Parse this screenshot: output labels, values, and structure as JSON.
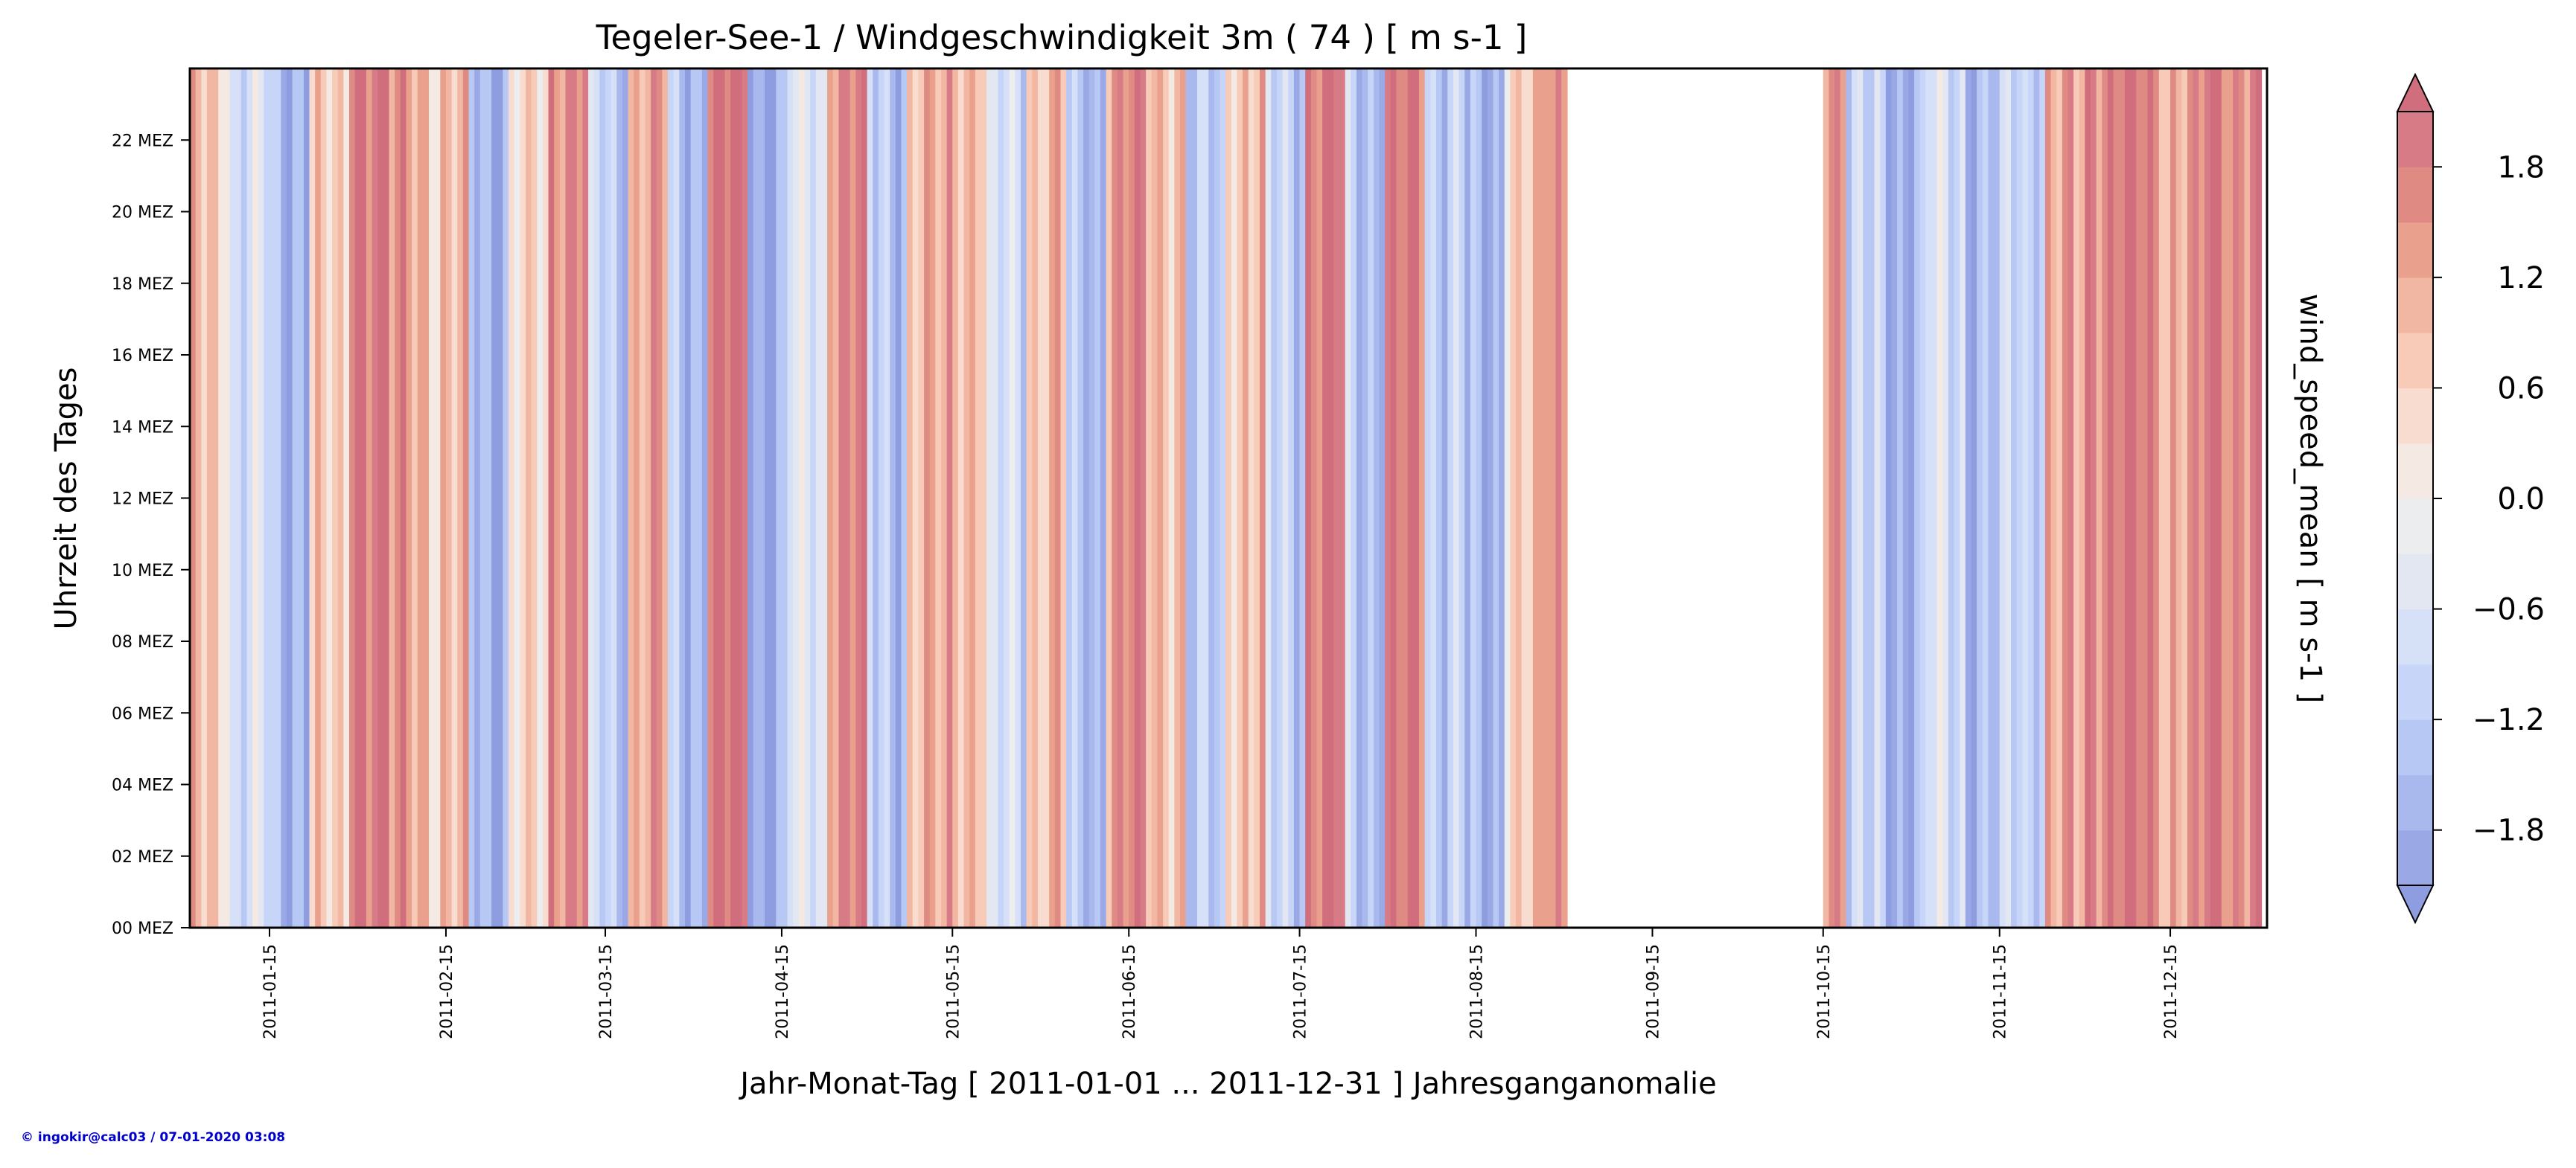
{
  "chart_data": {
    "type": "heatmap",
    "title": "Tegeler-See-1 / Windgeschwindigkeit 3m ( 74 ) [ m s-1 ]",
    "xlabel": "Jahr-Monat-Tag [ 2011-01-01 ... 2011-12-31 ] Jahresganganomalie",
    "ylabel": "Uhrzeit des Tages",
    "colorbar_label": "wind_speed_mean [ m s-1 ]",
    "xlim": [
      "2011-01-01",
      "2011-12-31"
    ],
    "ylim": [
      0,
      24
    ],
    "x_ticks": [
      "2011-01-15",
      "2011-02-15",
      "2011-03-15",
      "2011-04-15",
      "2011-05-15",
      "2011-06-15",
      "2011-07-15",
      "2011-08-15",
      "2011-09-15",
      "2011-10-15",
      "2011-11-15",
      "2011-12-15"
    ],
    "y_ticks": [
      {
        "hour": 0,
        "label": "00 MEZ"
      },
      {
        "hour": 2,
        "label": "02 MEZ"
      },
      {
        "hour": 4,
        "label": "04 MEZ"
      },
      {
        "hour": 6,
        "label": "06 MEZ"
      },
      {
        "hour": 8,
        "label": "08 MEZ"
      },
      {
        "hour": 10,
        "label": "10 MEZ"
      },
      {
        "hour": 12,
        "label": "12 MEZ"
      },
      {
        "hour": 14,
        "label": "14 MEZ"
      },
      {
        "hour": 16,
        "label": "16 MEZ"
      },
      {
        "hour": 18,
        "label": "18 MEZ"
      },
      {
        "hour": 20,
        "label": "20 MEZ"
      },
      {
        "hour": 22,
        "label": "22 MEZ"
      }
    ],
    "colorbar": {
      "range": [
        -2.1,
        2.1
      ],
      "levels": [
        -2.1,
        -1.8,
        -1.5,
        -1.2,
        -0.9,
        -0.6,
        -0.3,
        0.0,
        0.3,
        0.6,
        0.9,
        1.2,
        1.5,
        1.8,
        2.1
      ],
      "colors": [
        "#9aa9e6",
        "#a9b9ee",
        "#b8c8f4",
        "#c7d6f8",
        "#d6e1f8",
        "#e2e7f2",
        "#ecedef",
        "#f4e9e3",
        "#f8dccf",
        "#f7cbb8",
        "#f2b7a2",
        "#e9a08c",
        "#df8a83",
        "#d77b86"
      ],
      "under_color": "#8e9de0",
      "over_color": "#d06e7e",
      "ticks": [
        {
          "value": -1.8,
          "label": "−1.8"
        },
        {
          "value": -1.2,
          "label": "−1.2"
        },
        {
          "value": -0.6,
          "label": "−0.6"
        },
        {
          "value": 0.0,
          "label": "0.0"
        },
        {
          "value": 0.6,
          "label": "0.6"
        },
        {
          "value": 1.2,
          "label": "1.2"
        },
        {
          "value": 1.8,
          "label": "1.8"
        }
      ]
    },
    "missing_ranges": [
      [
        "2011-08-31",
        "2011-10-15"
      ]
    ],
    "daily_anomaly_profile": [
      {
        "start": "2011-01-01",
        "end": "2011-01-08",
        "value": 0.9
      },
      {
        "start": "2011-01-08",
        "end": "2011-01-15",
        "value": -0.8
      },
      {
        "start": "2011-01-15",
        "end": "2011-01-22",
        "value": -1.5
      },
      {
        "start": "2011-01-22",
        "end": "2011-01-29",
        "value": 0.5
      },
      {
        "start": "2011-01-29",
        "end": "2011-02-05",
        "value": 2.2
      },
      {
        "start": "2011-02-05",
        "end": "2011-02-12",
        "value": 1.4
      },
      {
        "start": "2011-02-12",
        "end": "2011-02-19",
        "value": 0.8
      },
      {
        "start": "2011-02-19",
        "end": "2011-02-26",
        "value": -1.6
      },
      {
        "start": "2011-02-26",
        "end": "2011-03-05",
        "value": 0.3
      },
      {
        "start": "2011-03-05",
        "end": "2011-03-12",
        "value": 1.9
      },
      {
        "start": "2011-03-12",
        "end": "2011-03-19",
        "value": -1.2
      },
      {
        "start": "2011-03-19",
        "end": "2011-03-26",
        "value": 1.2
      },
      {
        "start": "2011-03-26",
        "end": "2011-04-02",
        "value": -1.4
      },
      {
        "start": "2011-04-02",
        "end": "2011-04-09",
        "value": 2.0
      },
      {
        "start": "2011-04-09",
        "end": "2011-04-16",
        "value": -1.7
      },
      {
        "start": "2011-04-16",
        "end": "2011-04-23",
        "value": -0.6
      },
      {
        "start": "2011-04-23",
        "end": "2011-04-30",
        "value": 1.8
      },
      {
        "start": "2011-04-30",
        "end": "2011-05-07",
        "value": -1.3
      },
      {
        "start": "2011-05-07",
        "end": "2011-05-14",
        "value": 0.9
      },
      {
        "start": "2011-05-14",
        "end": "2011-05-21",
        "value": 1.3
      },
      {
        "start": "2011-05-21",
        "end": "2011-05-28",
        "value": -0.9
      },
      {
        "start": "2011-05-28",
        "end": "2011-06-04",
        "value": 1.0
      },
      {
        "start": "2011-06-04",
        "end": "2011-06-11",
        "value": -1.5
      },
      {
        "start": "2011-06-11",
        "end": "2011-06-18",
        "value": 1.6
      },
      {
        "start": "2011-06-18",
        "end": "2011-06-25",
        "value": 1.1
      },
      {
        "start": "2011-06-25",
        "end": "2011-07-02",
        "value": -1.4
      },
      {
        "start": "2011-07-02",
        "end": "2011-07-09",
        "value": 1.0
      },
      {
        "start": "2011-07-09",
        "end": "2011-07-16",
        "value": -1.1
      },
      {
        "start": "2011-07-16",
        "end": "2011-07-23",
        "value": 2.0
      },
      {
        "start": "2011-07-23",
        "end": "2011-07-30",
        "value": -1.3
      },
      {
        "start": "2011-07-30",
        "end": "2011-08-06",
        "value": 1.7
      },
      {
        "start": "2011-08-06",
        "end": "2011-08-13",
        "value": -1.0
      },
      {
        "start": "2011-08-13",
        "end": "2011-08-20",
        "value": -1.8
      },
      {
        "start": "2011-08-20",
        "end": "2011-08-27",
        "value": 0.8
      },
      {
        "start": "2011-08-27",
        "end": "2011-08-31",
        "value": 1.5
      },
      {
        "start": "2011-10-15",
        "end": "2011-10-19",
        "value": 1.8
      },
      {
        "start": "2011-10-19",
        "end": "2011-10-26",
        "value": -1.2
      },
      {
        "start": "2011-10-26",
        "end": "2011-11-02",
        "value": -1.6
      },
      {
        "start": "2011-11-02",
        "end": "2011-11-09",
        "value": -0.7
      },
      {
        "start": "2011-11-09",
        "end": "2011-11-16",
        "value": -1.5
      },
      {
        "start": "2011-11-16",
        "end": "2011-11-23",
        "value": -0.9
      },
      {
        "start": "2011-11-23",
        "end": "2011-11-30",
        "value": 1.1
      },
      {
        "start": "2011-11-30",
        "end": "2011-12-07",
        "value": 2.0
      },
      {
        "start": "2011-12-07",
        "end": "2011-12-14",
        "value": 1.7
      },
      {
        "start": "2011-12-14",
        "end": "2011-12-21",
        "value": 1.3
      },
      {
        "start": "2011-12-21",
        "end": "2011-12-31",
        "value": 1.9
      }
    ],
    "grid": false,
    "legend": "none"
  },
  "credit": "© ingokir@calc03 / 07-01-2020 03:08"
}
